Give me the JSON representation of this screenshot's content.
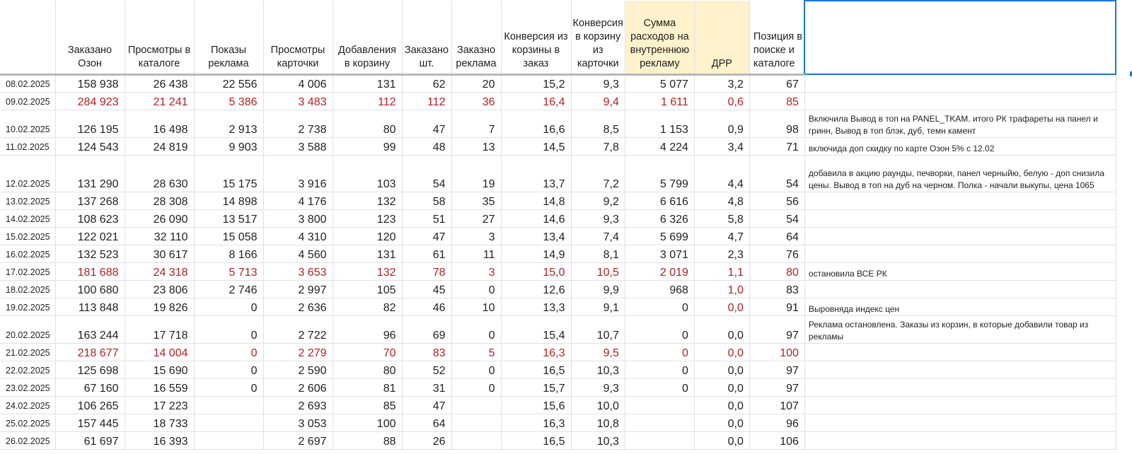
{
  "headers": [
    "",
    "Заказано Озон",
    "Просмотры в каталоге",
    "Показы реклама",
    "Просмотры карточки",
    "Добавления в корзину",
    "Заказано шт.",
    "Заказно реклама",
    "Конверсия из корзины в заказ",
    "Конверсия в корзину из карточки",
    "Сумма расходов на внутреннюю рекламу",
    "ДРР",
    "Позиция в поиске и каталоге",
    ""
  ],
  "rows": [
    {
      "date": "08.02.2025",
      "c": [
        "158 938",
        "26 438",
        "22 556",
        "4 006",
        "131",
        "62",
        "20",
        "15,2",
        "9,3",
        "5 077",
        "3,2",
        "67"
      ],
      "note": ""
    },
    {
      "date": "09.02.2025",
      "c": [
        "284 923",
        "21 241",
        "5 386",
        "3 483",
        "112",
        "112",
        "36",
        "16,4",
        "9,4",
        "1 611",
        "0,6",
        "85"
      ],
      "note": ""
    },
    {
      "date": "10.02.2025",
      "c": [
        "126 195",
        "16 498",
        "2 913",
        "2 738",
        "80",
        "47",
        "7",
        "16,6",
        "8,5",
        "1 153",
        "0,9",
        "98"
      ],
      "note": "Включила Вывод в топ на PANEL_TKAM. итого РК трафареты на панел и гринн, Вывод в топ блэк, дуб, темн камент"
    },
    {
      "date": "11.02.2025",
      "c": [
        "124 543",
        "24 819",
        "9 903",
        "3 588",
        "99",
        "48",
        "13",
        "14,5",
        "7,8",
        "4 224",
        "3,4",
        "71"
      ],
      "note": "включида доп скидку по карте Озон 5% с 12.02"
    },
    {
      "date": "12.02.2025",
      "c": [
        "131 290",
        "28 630",
        "15 175",
        "3 916",
        "103",
        "54",
        "19",
        "13,7",
        "7,2",
        "5 799",
        "4,4",
        "54"
      ],
      "note": "добавила в акцию раунды, печворки, панел черныйю, белую - доп снизила цены. Вывод в топ на дуб на черном. Полка - начали выкупы, цена 1065"
    },
    {
      "date": "13.02.2025",
      "c": [
        "137 268",
        "28 308",
        "14 898",
        "4 176",
        "132",
        "58",
        "35",
        "14,8",
        "9,2",
        "6 616",
        "4,8",
        "56"
      ],
      "note": ""
    },
    {
      "date": "14.02.2025",
      "c": [
        "108 623",
        "26 090",
        "13 517",
        "3 800",
        "123",
        "51",
        "27",
        "14,6",
        "9,3",
        "6 326",
        "5,8",
        "54"
      ],
      "note": ""
    },
    {
      "date": "15.02.2025",
      "c": [
        "122 021",
        "32 110",
        "15 058",
        "4 310",
        "120",
        "47",
        "3",
        "13,4",
        "7,4",
        "5 699",
        "4,7",
        "64"
      ],
      "note": ""
    },
    {
      "date": "16.02.2025",
      "c": [
        "132 523",
        "30 617",
        "8 166",
        "4 560",
        "131",
        "61",
        "11",
        "14,9",
        "8,1",
        "3 071",
        "2,3",
        "76"
      ],
      "note": ""
    },
    {
      "date": "17.02.2025",
      "c": [
        "181 688",
        "24 318",
        "5 713",
        "3 653",
        "132",
        "78",
        "3",
        "15,0",
        "10,5",
        "2 019",
        "1,1",
        "80"
      ],
      "note": "остановила ВСЕ РК"
    },
    {
      "date": "18.02.2025",
      "c": [
        "100 680",
        "23 806",
        "2 746",
        "2 997",
        "105",
        "45",
        "0",
        "12,6",
        "9,9",
        "968",
        "1,0",
        "83"
      ],
      "note": ""
    },
    {
      "date": "19.02.2025",
      "c": [
        "113 848",
        "19 826",
        "0",
        "2 636",
        "82",
        "46",
        "10",
        "13,3",
        "9,1",
        "0",
        "0,0",
        "91"
      ],
      "note": "Выровняда индекс цен"
    },
    {
      "date": "20.02.2025",
      "c": [
        "163 244",
        "17 718",
        "0",
        "2 722",
        "96",
        "69",
        "0",
        "15,4",
        "10,7",
        "0",
        "0,0",
        "97"
      ],
      "note": "Реклама остановлена. Заказы из корзин, в которые добавили товар из рекламы"
    },
    {
      "date": "21.02.2025",
      "c": [
        "218 677",
        "14 004",
        "0",
        "2 279",
        "70",
        "83",
        "5",
        "16,3",
        "9,5",
        "0",
        "0,0",
        "100"
      ],
      "note": ""
    },
    {
      "date": "22.02.2025",
      "c": [
        "125 698",
        "15 690",
        "0",
        "2 590",
        "80",
        "52",
        "0",
        "16,5",
        "10,3",
        "0",
        "0,0",
        "97"
      ],
      "note": ""
    },
    {
      "date": "23.02.2025",
      "c": [
        "67 160",
        "16 559",
        "0",
        "2 606",
        "81",
        "31",
        "0",
        "15,7",
        "9,3",
        "0",
        "0,0",
        "97"
      ],
      "note": ""
    },
    {
      "date": "24.02.2025",
      "c": [
        "106 265",
        "17 223",
        "",
        "2 693",
        "85",
        "47",
        "",
        "15,6",
        "10,0",
        "",
        "0,0",
        "107"
      ],
      "note": ""
    },
    {
      "date": "25.02.2025",
      "c": [
        "157 445",
        "18 733",
        "",
        "3 053",
        "100",
        "64",
        "",
        "16,3",
        "10,8",
        "",
        "0,0",
        "96"
      ],
      "note": ""
    },
    {
      "date": "26.02.2025",
      "c": [
        "61 697",
        "16 393",
        "",
        "2 697",
        "88",
        "26",
        "",
        "16,5",
        "10,3",
        "",
        "0,0",
        "106"
      ],
      "note": ""
    }
  ],
  "colors": {
    "red": "#b21f24",
    "header_highlight": "#fff2cc",
    "selection": "#1a73e8",
    "grid": "#e1e1e1"
  }
}
